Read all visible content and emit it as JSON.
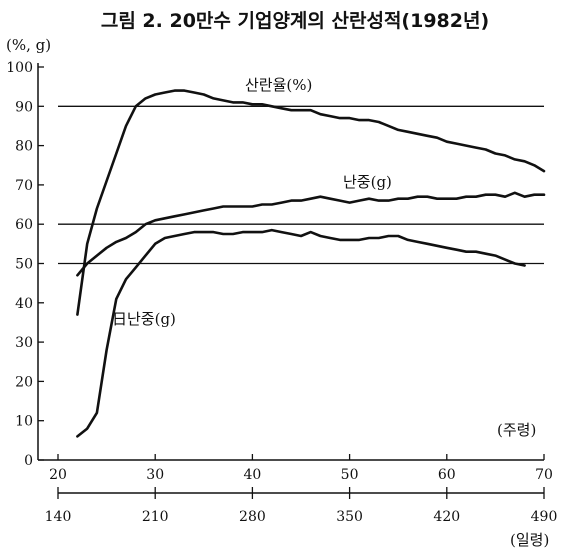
{
  "chart_data": {
    "type": "line",
    "title": "그림 2. 20만수 기업양계의 산란성적(1982년)",
    "ylabel": "(%, g)",
    "xlabel": "(주령)",
    "x2label": "(일령)",
    "ylim": [
      0,
      100
    ],
    "xlim": [
      20,
      70
    ],
    "grid": false,
    "y_ticks": [
      "0",
      "10",
      "20",
      "30",
      "40",
      "50",
      "60",
      "70",
      "80",
      "90",
      "100"
    ],
    "x_ticks": [
      "20",
      "30",
      "40",
      "50",
      "60",
      "70"
    ],
    "x2_ticks": [
      "140",
      "210",
      "280",
      "350",
      "420",
      "490"
    ],
    "reference_lines": [
      90,
      60,
      50
    ],
    "series": [
      {
        "name": "산란율(%)",
        "x": [
          22,
          22.5,
          23,
          24,
          25,
          26,
          27,
          28,
          29,
          30,
          31,
          32,
          33,
          34,
          35,
          36,
          37,
          38,
          39,
          40,
          41,
          42,
          43,
          44,
          45,
          46,
          47,
          48,
          49,
          50,
          51,
          52,
          53,
          54,
          55,
          56,
          57,
          58,
          59,
          60,
          61,
          62,
          63,
          64,
          65,
          66,
          67,
          68,
          69,
          70
        ],
        "values": [
          37,
          46,
          55,
          64,
          71,
          78,
          85,
          90,
          92,
          93,
          93.5,
          94,
          94,
          93.5,
          93,
          92,
          91.5,
          91,
          91,
          90.5,
          90.5,
          90,
          89.5,
          89,
          89,
          89,
          88,
          87.5,
          87,
          87,
          86.5,
          86.5,
          86,
          85,
          84,
          83.5,
          83,
          82.5,
          82,
          81,
          80.5,
          80,
          79.5,
          79,
          78,
          77.5,
          76.5,
          76,
          75,
          73.5
        ]
      },
      {
        "name": "난중(g)",
        "x": [
          22,
          23,
          24,
          25,
          26,
          27,
          28,
          29,
          30,
          31,
          32,
          33,
          34,
          35,
          36,
          37,
          38,
          39,
          40,
          41,
          42,
          43,
          44,
          45,
          46,
          47,
          48,
          49,
          50,
          51,
          52,
          53,
          54,
          55,
          56,
          57,
          58,
          59,
          60,
          61,
          62,
          63,
          64,
          65,
          66,
          67,
          68,
          69,
          70
        ],
        "values": [
          47,
          50,
          52,
          54,
          55.5,
          56.5,
          58,
          60,
          61,
          61.5,
          62,
          62.5,
          63,
          63.5,
          64,
          64.5,
          64.5,
          64.5,
          64.5,
          65,
          65,
          65.5,
          66,
          66,
          66.5,
          67,
          66.5,
          66,
          65.5,
          66,
          66.5,
          66,
          66,
          66.5,
          66.5,
          67,
          67,
          66.5,
          66.5,
          66.5,
          67,
          67,
          67.5,
          67.5,
          67,
          68,
          67,
          67.5,
          67.5
        ]
      },
      {
        "name": "日난중(g)",
        "x": [
          22,
          23,
          24,
          25,
          26,
          27,
          28,
          29,
          30,
          31,
          32,
          33,
          34,
          35,
          36,
          37,
          38,
          39,
          40,
          41,
          42,
          43,
          44,
          45,
          46,
          47,
          48,
          49,
          50,
          51,
          52,
          53,
          54,
          55,
          56,
          57,
          58,
          59,
          60,
          61,
          62,
          63,
          64,
          65,
          66,
          67,
          68
        ],
        "values": [
          6,
          8,
          12,
          28,
          41,
          46,
          49,
          52,
          55,
          56.5,
          57,
          57.5,
          58,
          58,
          58,
          57.5,
          57.5,
          58,
          58,
          58,
          58.5,
          58,
          57.5,
          57,
          58,
          57,
          56.5,
          56,
          56,
          56,
          56.5,
          56.5,
          57,
          57,
          56,
          55.5,
          55,
          54.5,
          54,
          53.5,
          53,
          53,
          52.5,
          52,
          51,
          50,
          49.5
        ]
      }
    ]
  }
}
